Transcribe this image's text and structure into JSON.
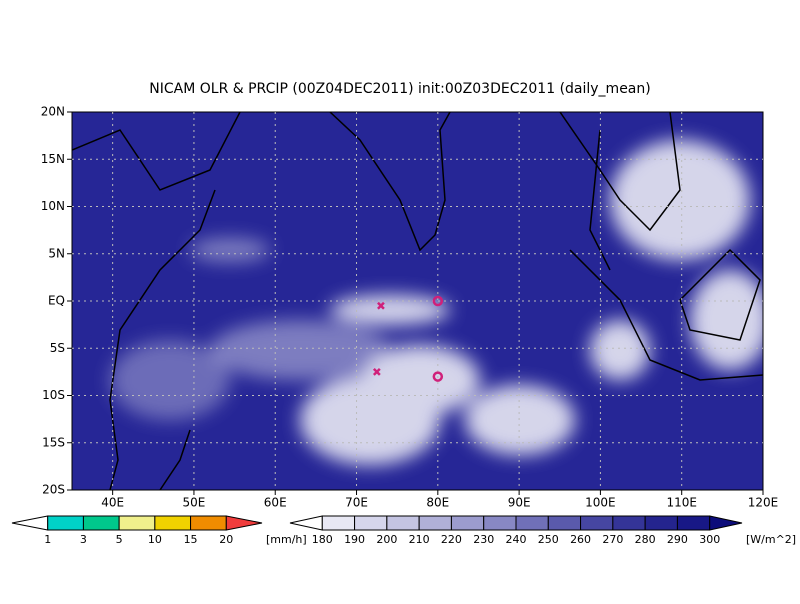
{
  "title": "NICAM OLR & PRCIP (00Z04DEC2011) init:00Z03DEC2011 (daily_mean)",
  "map": {
    "xlim": [
      35,
      120
    ],
    "ylim": [
      -20,
      20
    ],
    "xticks": [
      {
        "value": 40,
        "label": "40E"
      },
      {
        "value": 50,
        "label": "50E"
      },
      {
        "value": 60,
        "label": "60E"
      },
      {
        "value": 70,
        "label": "70E"
      },
      {
        "value": 80,
        "label": "80E"
      },
      {
        "value": 90,
        "label": "90E"
      },
      {
        "value": 100,
        "label": "100E"
      },
      {
        "value": 110,
        "label": "110E"
      },
      {
        "value": 120,
        "label": "120E"
      }
    ],
    "yticks": [
      {
        "value": -20,
        "label": "20S"
      },
      {
        "value": -15,
        "label": "15S"
      },
      {
        "value": -10,
        "label": "10S"
      },
      {
        "value": -5,
        "label": "5S"
      },
      {
        "value": 0,
        "label": "EQ"
      },
      {
        "value": 5,
        "label": "5N"
      },
      {
        "value": 10,
        "label": "10N"
      },
      {
        "value": 15,
        "label": "15N"
      },
      {
        "value": 20,
        "label": "20N"
      }
    ],
    "grid": true,
    "cross_markers": {
      "lon": [
        73,
        72.5
      ],
      "lat": [
        -0.5,
        -7.5
      ],
      "color": "#d0207a"
    },
    "circle_markers": {
      "lon": [
        80,
        80
      ],
      "lat": [
        0,
        -8
      ],
      "color": "#d0207a"
    }
  },
  "precip_colorbar": {
    "labels": [
      1,
      3,
      5,
      10,
      15,
      20
    ],
    "unit": "[mm/h]",
    "colors": [
      "#ffffff",
      "#00d2c8",
      "#00c88c",
      "#f0f08c",
      "#f0d200",
      "#f08c00",
      "#f03c3c"
    ]
  },
  "olr_colorbar": {
    "labels": [
      180,
      190,
      200,
      210,
      220,
      230,
      240,
      250,
      260,
      270,
      280,
      290,
      300
    ],
    "unit": "[W/m^2]",
    "colors": [
      "#ffffff",
      "#e8e8f4",
      "#d6d6ec",
      "#c4c4e2",
      "#b0b0d8",
      "#9c9cce",
      "#8888c4",
      "#7070b8",
      "#5a5aac",
      "#4646a2",
      "#343498",
      "#24248e",
      "#181886",
      "#0c0c7a"
    ]
  }
}
